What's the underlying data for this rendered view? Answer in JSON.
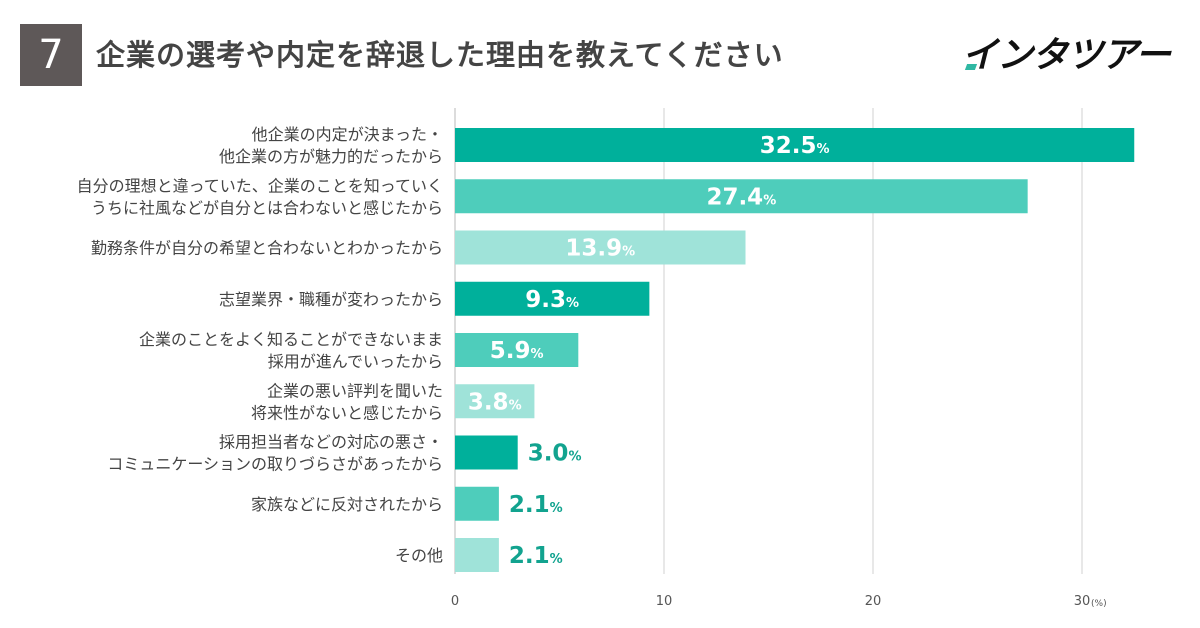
{
  "header": {
    "number": "7",
    "title": "企業の選考や内定を辞退した理由を教えてください",
    "logo": "インタツアー"
  },
  "colors": {
    "dark": "#00b09b",
    "medium": "#4ecdbb",
    "light": "#9fe3d9",
    "text_outside": "#12a38f",
    "grid": "#d0d0d0"
  },
  "chart_data": {
    "type": "bar",
    "orientation": "horizontal",
    "title": "企業の選考や内定を辞退した理由を教えてください",
    "unit": "(%)",
    "xlim": [
      0,
      30
    ],
    "xticks": [
      "0",
      "10",
      "20",
      "30"
    ],
    "value_suffix": "%",
    "categories": [
      [
        "他企業の内定が決まった・",
        "他企業の方が魅力的だったから"
      ],
      [
        "自分の理想と違っていた、企業のことを知っていく",
        "うちに社風などが自分とは合わないと感じたから"
      ],
      [
        "勤務条件が自分の希望と合わないとわかったから"
      ],
      [
        "志望業界・職種が変わったから"
      ],
      [
        "企業のことをよく知ることができないまま",
        "採用が進んでいったから"
      ],
      [
        "企業の悪い評判を聞いた",
        "将来性がないと感じたから"
      ],
      [
        "採用担当者などの対応の悪さ・",
        "コミュニケーションの取りづらさがあったから"
      ],
      [
        "家族などに反対されたから"
      ],
      [
        "その他"
      ]
    ],
    "values": [
      32.5,
      27.4,
      13.9,
      9.3,
      5.9,
      3.8,
      3.0,
      2.1,
      2.1
    ],
    "value_labels": [
      "32.5",
      "27.4",
      "13.9",
      "9.3",
      "5.9",
      "3.8",
      "3.0",
      "2.1",
      "2.1"
    ],
    "bar_shades": [
      "dark",
      "medium",
      "light",
      "dark",
      "medium",
      "light",
      "dark",
      "medium",
      "light"
    ]
  }
}
